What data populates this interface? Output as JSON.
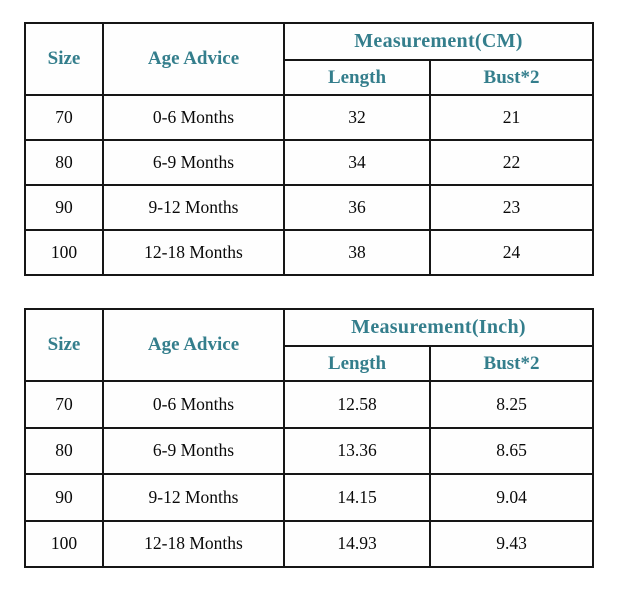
{
  "accent_color": "#347e8c",
  "border_color": "#161616",
  "tables": [
    {
      "id": "cm",
      "headers": {
        "size": "Size",
        "age": "Age Advice",
        "group": "Measurement(CM)",
        "length": "Length",
        "bust": "Bust*2"
      },
      "rows": [
        {
          "size": "70",
          "age": "0-6 Months",
          "length": "32",
          "bust": "21"
        },
        {
          "size": "80",
          "age": "6-9 Months",
          "length": "34",
          "bust": "22"
        },
        {
          "size": "90",
          "age": "9-12 Months",
          "length": "36",
          "bust": "23"
        },
        {
          "size": "100",
          "age": "12-18 Months",
          "length": "38",
          "bust": "24"
        }
      ]
    },
    {
      "id": "inch",
      "headers": {
        "size": "Size",
        "age": "Age Advice",
        "group": "Measurement(Inch)",
        "length": "Length",
        "bust": "Bust*2"
      },
      "rows": [
        {
          "size": "70",
          "age": "0-6 Months",
          "length": "12.58",
          "bust": "8.25"
        },
        {
          "size": "80",
          "age": "6-9 Months",
          "length": "13.36",
          "bust": "8.65"
        },
        {
          "size": "90",
          "age": "9-12 Months",
          "length": "14.15",
          "bust": "9.04"
        },
        {
          "size": "100",
          "age": "12-18 Months",
          "length": "14.93",
          "bust": "9.43"
        }
      ]
    }
  ]
}
